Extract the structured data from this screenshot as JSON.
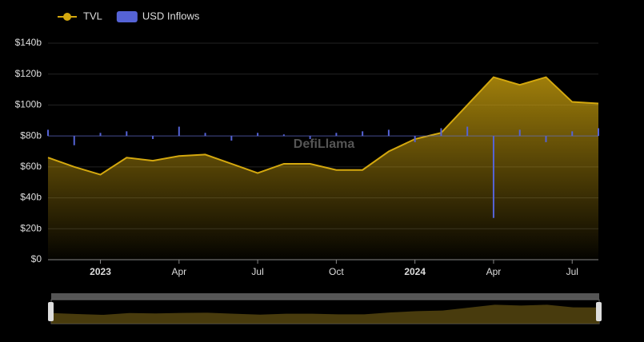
{
  "chart_data": {
    "type": "line",
    "watermark": "DefiLlama",
    "x": [
      "2022-11",
      "2022-12",
      "2023-01",
      "2023-02",
      "2023-03",
      "2023-04",
      "2023-05",
      "2023-06",
      "2023-07",
      "2023-08",
      "2023-09",
      "2023-10",
      "2023-11",
      "2023-12",
      "2024-01",
      "2024-02",
      "2024-03",
      "2024-04",
      "2024-05",
      "2024-06",
      "2024-07",
      "2024-08"
    ],
    "series": [
      {
        "name": "TVL",
        "color": "#d4a80e",
        "values": [
          66,
          60,
          55,
          66,
          64,
          67,
          68,
          62,
          56,
          62,
          62,
          58,
          58,
          70,
          78,
          82,
          100,
          118,
          113,
          118,
          102,
          101
        ]
      },
      {
        "name": "USD Inflows",
        "color": "#5563d6",
        "axis": "y2",
        "values": [
          0.2,
          -0.3,
          0.1,
          0.15,
          -0.1,
          0.3,
          0.1,
          -0.15,
          0.1,
          0.05,
          -0.1,
          0.1,
          0.15,
          0.2,
          -0.2,
          0.25,
          0.3,
          -2.65,
          0.2,
          -0.2,
          0.15,
          0.25
        ]
      }
    ],
    "ylim": [
      0,
      140
    ],
    "yticks": [
      {
        "value": 0,
        "label": "$0"
      },
      {
        "value": 20,
        "label": "$20b"
      },
      {
        "value": 40,
        "label": "$40b"
      },
      {
        "value": 60,
        "label": "$60b"
      },
      {
        "value": 80,
        "label": "$80b"
      },
      {
        "value": 100,
        "label": "$100b"
      },
      {
        "value": 120,
        "label": "$120b"
      },
      {
        "value": 140,
        "label": "$140b"
      }
    ],
    "y2lim": [
      -4,
      3
    ],
    "xticks": [
      {
        "value": "2023-01",
        "label": "2023"
      },
      {
        "value": "2023-04",
        "label": "Apr"
      },
      {
        "value": "2023-07",
        "label": "Jul"
      },
      {
        "value": "2023-10",
        "label": "Oct"
      },
      {
        "value": "2024-01",
        "label": "2024"
      },
      {
        "value": "2024-04",
        "label": "Apr"
      },
      {
        "value": "2024-07",
        "label": "Jul"
      }
    ],
    "grid": true
  }
}
